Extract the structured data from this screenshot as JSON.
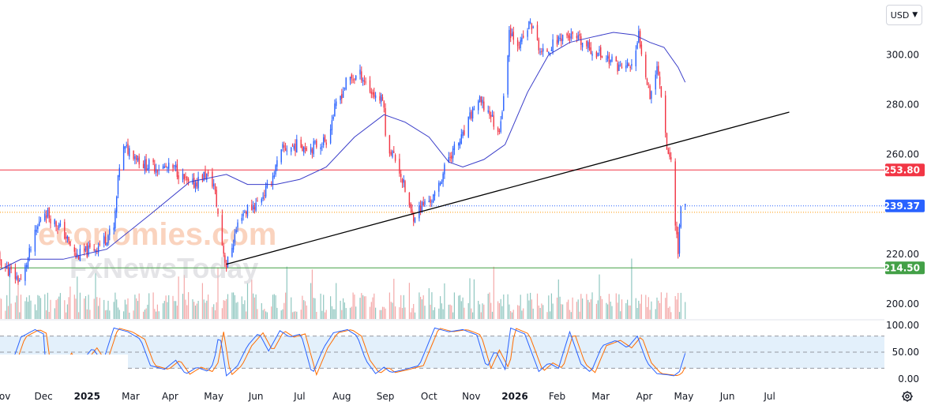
{
  "toolbar": {
    "currency": "USD"
  },
  "watermark": {
    "line1": "economies.com",
    "line2": "FxNewsToday"
  },
  "colors": {
    "up": "#2962ff",
    "down": "#f23645",
    "ma": "#3a3dc9",
    "trend": "#000000",
    "resistance": "#f23645",
    "support": "#43a047",
    "last": "#2962ff",
    "stoch_k": "#2962ff",
    "stoch_d": "#ff6d00"
  },
  "chart_data": [
    {
      "type": "candlestick",
      "title": "",
      "currency": "USD",
      "y_ticks": [
        "300.00",
        "280.00",
        "260.00",
        "240.00",
        "220.00",
        "200.00"
      ],
      "ylim": [
        194,
        322
      ],
      "x_ticks": [
        {
          "label": "Nov",
          "bold": false
        },
        {
          "label": "Dec",
          "bold": false
        },
        {
          "label": "2025",
          "bold": true
        },
        {
          "label": "Mar",
          "bold": false
        },
        {
          "label": "Apr",
          "bold": false
        },
        {
          "label": "May",
          "bold": false
        },
        {
          "label": "Jun",
          "bold": false
        },
        {
          "label": "Jul",
          "bold": false
        },
        {
          "label": "Aug",
          "bold": false
        },
        {
          "label": "Sep",
          "bold": false
        },
        {
          "label": "Oct",
          "bold": false
        },
        {
          "label": "Nov",
          "bold": false
        },
        {
          "label": "2026",
          "bold": true
        },
        {
          "label": "Feb",
          "bold": false
        },
        {
          "label": "Mar",
          "bold": false
        },
        {
          "label": "Apr",
          "bold": false
        },
        {
          "label": "May",
          "bold": false
        },
        {
          "label": "Jun",
          "bold": false
        },
        {
          "label": "Jul",
          "bold": false
        }
      ],
      "close_path": [
        [
          "2024-10-25",
          222
        ],
        [
          "2024-11-05",
          214
        ],
        [
          "2024-11-15",
          209
        ],
        [
          "2024-11-22",
          222
        ],
        [
          "2024-12-01",
          238
        ],
        [
          "2024-12-15",
          229
        ],
        [
          "2024-12-24",
          219
        ],
        [
          "2025-01-08",
          223
        ],
        [
          "2025-01-20",
          230
        ],
        [
          "2025-01-25",
          262
        ],
        [
          "2025-02-01",
          262
        ],
        [
          "2025-02-10",
          256
        ],
        [
          "2025-02-20",
          255
        ],
        [
          "2025-03-05",
          254
        ],
        [
          "2025-03-15",
          247
        ],
        [
          "2025-03-26",
          252
        ],
        [
          "2025-04-01",
          248
        ],
        [
          "2025-04-07",
          224
        ],
        [
          "2025-04-10",
          215
        ],
        [
          "2025-04-20",
          236
        ],
        [
          "2025-05-01",
          240
        ],
        [
          "2025-05-10",
          247
        ],
        [
          "2025-05-20",
          262
        ],
        [
          "2025-06-01",
          264
        ],
        [
          "2025-06-10",
          263
        ],
        [
          "2025-06-20",
          266
        ],
        [
          "2025-06-26",
          278
        ],
        [
          "2025-07-05",
          290
        ],
        [
          "2025-07-15",
          292
        ],
        [
          "2025-07-22",
          285
        ],
        [
          "2025-07-31",
          281
        ],
        [
          "2025-08-01",
          266
        ],
        [
          "2025-08-10",
          256
        ],
        [
          "2025-08-20",
          235
        ],
        [
          "2025-08-28",
          240
        ],
        [
          "2025-09-05",
          243
        ],
        [
          "2025-09-15",
          259
        ],
        [
          "2025-09-25",
          267
        ],
        [
          "2025-10-05",
          282
        ],
        [
          "2025-10-15",
          276
        ],
        [
          "2025-10-20",
          268
        ],
        [
          "2025-10-25",
          285
        ],
        [
          "2025-10-28",
          310
        ],
        [
          "2025-11-05",
          304
        ],
        [
          "2025-11-12",
          313
        ],
        [
          "2025-11-20",
          300
        ],
        [
          "2025-11-28",
          304
        ],
        [
          "2025-12-05",
          308
        ],
        [
          "2025-12-15",
          306
        ],
        [
          "2025-12-25",
          302
        ],
        [
          "2026-01-05",
          299
        ],
        [
          "2026-01-15",
          295
        ],
        [
          "2026-01-25",
          296
        ],
        [
          "2026-01-28",
          308
        ],
        [
          "2026-02-05",
          284
        ],
        [
          "2026-02-10",
          295
        ],
        [
          "2026-02-14",
          282
        ],
        [
          "2026-02-17",
          263
        ],
        [
          "2026-02-20",
          257
        ],
        [
          "2026-02-23",
          234
        ],
        [
          "2026-02-25",
          221
        ],
        [
          "2026-02-27",
          240
        ],
        [
          "2026-03-02",
          239
        ]
      ],
      "moving_average": [
        [
          "2024-10-25",
          212
        ],
        [
          "2024-11-15",
          218
        ],
        [
          "2024-12-15",
          218
        ],
        [
          "2025-01-15",
          222
        ],
        [
          "2025-02-15",
          236
        ],
        [
          "2025-03-15",
          249
        ],
        [
          "2025-04-10",
          252
        ],
        [
          "2025-04-25",
          248
        ],
        [
          "2025-05-15",
          248
        ],
        [
          "2025-06-01",
          250
        ],
        [
          "2025-06-20",
          255
        ],
        [
          "2025-07-10",
          267
        ],
        [
          "2025-07-31",
          276
        ],
        [
          "2025-08-15",
          273
        ],
        [
          "2025-09-01",
          267
        ],
        [
          "2025-09-15",
          257
        ],
        [
          "2025-09-25",
          255
        ],
        [
          "2025-10-10",
          258
        ],
        [
          "2025-10-25",
          264
        ],
        [
          "2025-11-10",
          285
        ],
        [
          "2025-11-25",
          300
        ],
        [
          "2025-12-10",
          305
        ],
        [
          "2025-12-25",
          307
        ],
        [
          "2026-01-10",
          309
        ],
        [
          "2026-01-25",
          308
        ],
        [
          "2026-02-05",
          305
        ],
        [
          "2026-02-15",
          303
        ],
        [
          "2026-02-25",
          295
        ],
        [
          "2026-03-02",
          289
        ]
      ],
      "trendline": {
        "start": [
          "2025-04-10",
          216
        ],
        "end": [
          "2026-05-15",
          277
        ]
      },
      "levels": [
        {
          "name": "resistance",
          "price": 253.8,
          "label": "253.80"
        },
        {
          "name": "support",
          "price": 214.5,
          "label": "214.50"
        }
      ],
      "last_price": {
        "price": 239.37,
        "label": "239.37"
      },
      "previous_close": 236.8
    },
    {
      "type": "stochastic",
      "y_ticks": [
        "100.00",
        "50.00",
        "0.00"
      ],
      "ylim": [
        0,
        100
      ],
      "bands": [
        20,
        50,
        80
      ],
      "k_path": [
        [
          "2024-10-28",
          28
        ],
        [
          "2024-11-03",
          10
        ],
        [
          "2024-11-10",
          40
        ],
        [
          "2024-11-15",
          78
        ],
        [
          "2024-11-25",
          92
        ],
        [
          "2024-12-01",
          84
        ],
        [
          "2024-12-03",
          10
        ],
        [
          "2024-12-10",
          20
        ],
        [
          "2024-12-18",
          48
        ],
        [
          "2024-12-25",
          22
        ],
        [
          "2025-01-05",
          58
        ],
        [
          "2025-01-12",
          30
        ],
        [
          "2025-01-20",
          95
        ],
        [
          "2025-01-30",
          88
        ],
        [
          "2025-02-08",
          74
        ],
        [
          "2025-02-15",
          25
        ],
        [
          "2025-02-25",
          18
        ],
        [
          "2025-03-05",
          35
        ],
        [
          "2025-03-12",
          9
        ],
        [
          "2025-03-20",
          22
        ],
        [
          "2025-03-28",
          14
        ],
        [
          "2025-04-01",
          30
        ],
        [
          "2025-04-05",
          88
        ],
        [
          "2025-04-10",
          6
        ],
        [
          "2025-04-18",
          25
        ],
        [
          "2025-04-25",
          62
        ],
        [
          "2025-05-03",
          86
        ],
        [
          "2025-05-10",
          52
        ],
        [
          "2025-05-18",
          90
        ],
        [
          "2025-05-25",
          78
        ],
        [
          "2025-06-02",
          84
        ],
        [
          "2025-06-10",
          8
        ],
        [
          "2025-06-18",
          58
        ],
        [
          "2025-06-25",
          86
        ],
        [
          "2025-07-05",
          92
        ],
        [
          "2025-07-12",
          80
        ],
        [
          "2025-07-18",
          35
        ],
        [
          "2025-07-25",
          10
        ],
        [
          "2025-07-31",
          22
        ],
        [
          "2025-08-05",
          12
        ],
        [
          "2025-08-15",
          18
        ],
        [
          "2025-08-25",
          25
        ],
        [
          "2025-09-05",
          95
        ],
        [
          "2025-09-15",
          88
        ],
        [
          "2025-09-25",
          92
        ],
        [
          "2025-10-05",
          82
        ],
        [
          "2025-10-12",
          20
        ],
        [
          "2025-10-18",
          54
        ],
        [
          "2025-10-25",
          18
        ],
        [
          "2025-10-29",
          95
        ],
        [
          "2025-11-08",
          84
        ],
        [
          "2025-11-18",
          14
        ],
        [
          "2025-11-25",
          30
        ],
        [
          "2025-12-02",
          20
        ],
        [
          "2025-12-10",
          88
        ],
        [
          "2025-12-18",
          28
        ],
        [
          "2025-12-25",
          12
        ],
        [
          "2026-01-02",
          62
        ],
        [
          "2026-01-12",
          72
        ],
        [
          "2026-01-20",
          58
        ],
        [
          "2026-01-27",
          80
        ],
        [
          "2026-02-03",
          30
        ],
        [
          "2026-02-10",
          10
        ],
        [
          "2026-02-17",
          8
        ],
        [
          "2026-02-22",
          6
        ],
        [
          "2026-02-26",
          14
        ],
        [
          "2026-03-02",
          48
        ]
      ]
    }
  ]
}
